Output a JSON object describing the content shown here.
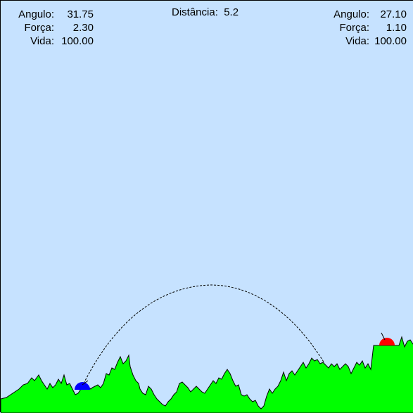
{
  "colors": {
    "sky": "#c6e2ff",
    "ground": "#00ff00",
    "ground_outline": "#000000",
    "player1": "#0000ff",
    "player2": "#ff0000",
    "trajectory": "#000000"
  },
  "player_left": {
    "angle_label": "Angulo:",
    "angle_value": "31.75",
    "force_label": "Força:",
    "force_value": "2.30",
    "life_label": "Vida:",
    "life_value": "100.00"
  },
  "player_right": {
    "angle_label": "Angulo:",
    "angle_value": "27.10",
    "force_label": "Força:",
    "force_value": "1.10",
    "life_label": "Vida:",
    "life_value": "100.00"
  },
  "distance": {
    "label": "Distância:",
    "value": "5.2"
  }
}
